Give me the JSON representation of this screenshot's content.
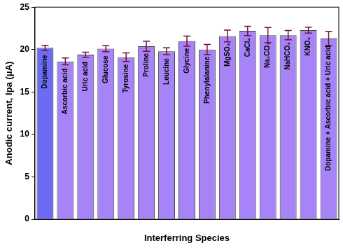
{
  "chart_data": {
    "type": "bar",
    "categories": [
      "Dopamine",
      "Ascorbic acid",
      "Uric acid",
      "Glucose",
      "Tyrosine",
      "Proline",
      "Leucine",
      "Glycine",
      "Phenylalanine",
      "MgSO₄",
      "CaCl₂",
      "Na₂CO₃",
      "NaHCO₃",
      "KNO₃",
      "Dopamine + Ascorbic acid + Uric acid"
    ],
    "values": [
      20.2,
      18.6,
      19.4,
      20.1,
      19.1,
      20.4,
      19.8,
      21.0,
      20.0,
      21.6,
      22.2,
      21.7,
      21.7,
      22.3,
      21.3
    ],
    "errors": [
      0.3,
      0.4,
      0.3,
      0.35,
      0.5,
      0.6,
      0.4,
      0.6,
      0.6,
      0.7,
      0.55,
      0.9,
      0.55,
      0.35,
      0.85
    ],
    "colors": [
      "#6b6cf2",
      "#a683f6",
      "#a683f6",
      "#a683f6",
      "#a683f6",
      "#a683f6",
      "#a683f6",
      "#a683f6",
      "#a683f6",
      "#a683f6",
      "#a683f6",
      "#a683f6",
      "#a683f6",
      "#a683f6",
      "#a683f6"
    ],
    "error_color": "#6e1234",
    "x_label": "Interferring Species",
    "y_label": "Anodic current, Ipa (μA)",
    "ylim": [
      0,
      25
    ],
    "yticks": [
      0,
      5,
      10,
      15,
      20,
      25
    ],
    "grid": false
  }
}
